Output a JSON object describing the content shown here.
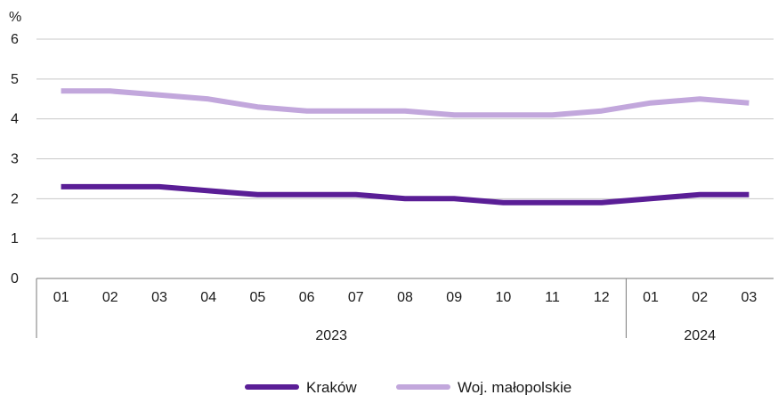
{
  "chart_data": {
    "type": "line",
    "ylabel": "%",
    "ylim": [
      0,
      6
    ],
    "yticks": [
      "0",
      "1",
      "2",
      "3",
      "4",
      "5",
      "6"
    ],
    "categories": [
      "01",
      "02",
      "03",
      "04",
      "05",
      "06",
      "07",
      "08",
      "09",
      "10",
      "11",
      "12",
      "01",
      "02",
      "03"
    ],
    "year_groups": [
      {
        "label": "2023",
        "count": 12
      },
      {
        "label": "2024",
        "count": 3
      }
    ],
    "grid": true,
    "legend_position": "bottom",
    "series": [
      {
        "name": "Kraków",
        "color": "#5a1e96",
        "values": [
          2.3,
          2.3,
          2.3,
          2.2,
          2.1,
          2.1,
          2.1,
          2.0,
          2.0,
          1.9,
          1.9,
          1.9,
          2.0,
          2.1,
          2.1
        ]
      },
      {
        "name": "Woj. małopolskie",
        "color": "#c2a7dc",
        "values": [
          4.7,
          4.7,
          4.6,
          4.5,
          4.3,
          4.2,
          4.2,
          4.2,
          4.1,
          4.1,
          4.1,
          4.2,
          4.4,
          4.5,
          4.4
        ]
      }
    ]
  }
}
